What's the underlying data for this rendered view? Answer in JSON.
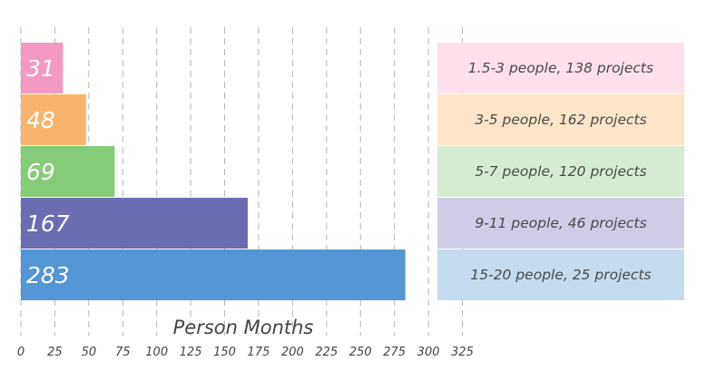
{
  "chart_data": {
    "type": "bar",
    "orientation": "horizontal",
    "categories": [
      "1.5-3 people, 138 projects",
      "3-5 people, 162 projects",
      "5-7 people, 120 projects",
      "9-11 people, 46 projects",
      "15-20 people, 25 projects"
    ],
    "values": [
      31,
      48,
      69,
      167,
      283
    ],
    "value_labels": [
      "31",
      "48",
      "69",
      "167",
      "283"
    ],
    "colors": [
      "#f49ac2",
      "#f8b46c",
      "#85cc78",
      "#6b6cb2",
      "#5296d5"
    ],
    "legend_colors": [
      "#fde0ec",
      "#fde5c9",
      "#d5ecd2",
      "#cfcde6",
      "#c5dbee"
    ],
    "xlabel": "Person Months",
    "ylabel": "",
    "xlim": [
      0,
      325
    ],
    "xticks": [
      0,
      25,
      50,
      75,
      100,
      125,
      150,
      175,
      200,
      225,
      250,
      275,
      300,
      325
    ],
    "xtick_labels": [
      "0",
      "25",
      "50",
      "75",
      "100",
      "125",
      "150",
      "175",
      "200",
      "225",
      "250",
      "275",
      "300",
      "325"
    ],
    "grid": "vertical-dashed",
    "legend_placement": "right"
  }
}
